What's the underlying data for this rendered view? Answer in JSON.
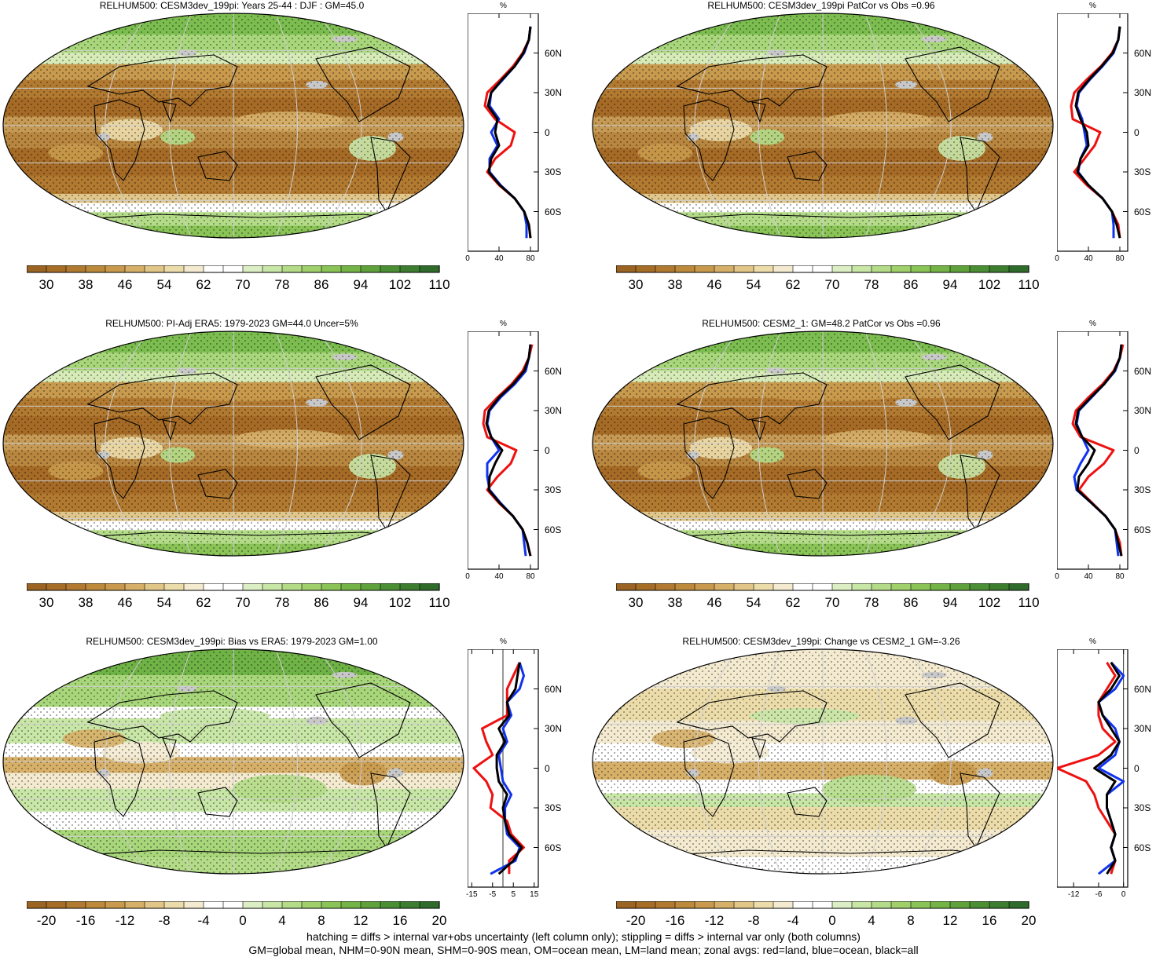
{
  "colors": {
    "brown_dark": "#a06a24",
    "tan": "#e6d39a",
    "green_light": "#b8dc8c",
    "green_dark": "#2f6b2f",
    "land_zonal": "#ee1111",
    "ocean_zonal": "#1133ee",
    "all_zonal": "#000000",
    "missing_gray": "#c8c8c8"
  },
  "panels": [
    {
      "title": "RELHUM500: CESM3dev_199pi: Years 25-44 : DJF : GM=45.0",
      "kind": "abs",
      "cbar_labels": [
        "30",
        "38",
        "46",
        "54",
        "62",
        "70",
        "78",
        "86",
        "94",
        "102",
        "110"
      ],
      "zonal_xticks": [
        "0",
        "40",
        "80"
      ],
      "zonal_lat_labels": [
        "60N",
        "30N",
        "0",
        "30S",
        "60S"
      ],
      "zonal_unit": "%"
    },
    {
      "title": "RELHUM500: CESM3dev_199pi PatCor vs Obs =0.96",
      "kind": "abs",
      "cbar_labels": [
        "30",
        "38",
        "46",
        "54",
        "62",
        "70",
        "78",
        "86",
        "94",
        "102",
        "110"
      ],
      "zonal_xticks": [
        "0",
        "40",
        "80"
      ],
      "zonal_lat_labels": [
        "60N",
        "30N",
        "0",
        "30S",
        "60S"
      ],
      "zonal_unit": "%"
    },
    {
      "title": "RELHUM500: PI-Adj ERA5: 1979-2023 GM=44.0 Uncer=5%",
      "kind": "abs",
      "cbar_labels": [
        "30",
        "38",
        "46",
        "54",
        "62",
        "70",
        "78",
        "86",
        "94",
        "102",
        "110"
      ],
      "zonal_xticks": [
        "0",
        "40",
        "80"
      ],
      "zonal_lat_labels": [
        "60N",
        "30N",
        "0",
        "30S",
        "60S"
      ],
      "zonal_unit": "%"
    },
    {
      "title": "RELHUM500: CESM2_1: GM=48.2 PatCor vs Obs =0.96",
      "kind": "abs",
      "cbar_labels": [
        "30",
        "38",
        "46",
        "54",
        "62",
        "70",
        "78",
        "86",
        "94",
        "102",
        "110"
      ],
      "zonal_xticks": [
        "0",
        "40",
        "80"
      ],
      "zonal_lat_labels": [
        "60N",
        "30N",
        "0",
        "30S",
        "60S"
      ],
      "zonal_unit": "%"
    },
    {
      "title": "RELHUM500: CESM3dev_199pi: Bias vs ERA5: 1979-2023 GM=1.00",
      "kind": "diff",
      "cbar_labels": [
        "-20",
        "-16",
        "-12",
        "-8",
        "-4",
        "0",
        "4",
        "8",
        "12",
        "16",
        "20"
      ],
      "zonal_xticks": [
        "-15",
        "-5",
        "5",
        "15"
      ],
      "zonal_lat_labels": [
        "60N",
        "30N",
        "0",
        "30S",
        "60S"
      ],
      "zonal_unit": "%"
    },
    {
      "title": "RELHUM500: CESM3dev_199pi: Change vs CESM2_1 GM=-3.26",
      "kind": "diff",
      "cbar_labels": [
        "-20",
        "-16",
        "-12",
        "-8",
        "-4",
        "0",
        "4",
        "8",
        "12",
        "16",
        "20"
      ],
      "zonal_xticks": [
        "-12",
        "-6",
        "0"
      ],
      "zonal_lat_labels": [
        "60N",
        "30N",
        "0",
        "30S",
        "60S"
      ],
      "zonal_unit": "%"
    }
  ],
  "footer": {
    "line1": "hatching = diffs > internal var+obs uncertainty (left column only); stippling = diffs > internal var only (both columns)",
    "line2": "GM=global mean, NHM=0-90N mean, SHM=0-90S mean, OM=ocean mean, LM=land mean; zonal avgs: red=land, blue=ocean, black=all"
  },
  "chart_data": [
    {
      "type": "heatmap",
      "title": "RELHUM500: CESM3dev_199pi: Years 25-44 : DJF : GM=45.0",
      "colorbar_ticks": [
        30,
        38,
        46,
        54,
        62,
        70,
        78,
        86,
        94,
        102,
        110
      ],
      "zonal_profile": {
        "ylabel": "%",
        "xlim": [
          0,
          90
        ],
        "xticks": [
          0,
          40,
          80
        ],
        "lat": [
          80,
          70,
          60,
          50,
          40,
          30,
          20,
          10,
          0,
          -10,
          -20,
          -30,
          -40,
          -50,
          -60,
          -70,
          -80
        ],
        "land": [
          80,
          78,
          70,
          58,
          42,
          25,
          22,
          35,
          60,
          55,
          35,
          25,
          40,
          60,
          72,
          78,
          80
        ],
        "ocean": [
          80,
          78,
          72,
          60,
          45,
          30,
          28,
          40,
          30,
          38,
          28,
          28,
          42,
          60,
          72,
          75,
          75
        ],
        "all": [
          80,
          78,
          71,
          60,
          44,
          30,
          26,
          38,
          35,
          40,
          30,
          27,
          41,
          60,
          72,
          78,
          80
        ]
      }
    },
    {
      "type": "heatmap",
      "title": "RELHUM500: CESM3dev_199pi PatCor vs Obs =0.96",
      "colorbar_ticks": [
        30,
        38,
        46,
        54,
        62,
        70,
        78,
        86,
        94,
        102,
        110
      ],
      "zonal_profile": {
        "ylabel": "%",
        "xlim": [
          0,
          90
        ],
        "xticks": [
          0,
          40,
          80
        ],
        "lat": [
          80,
          70,
          60,
          50,
          40,
          30,
          20,
          10,
          0,
          -10,
          -20,
          -30,
          -40,
          -50,
          -60,
          -70,
          -80
        ],
        "land": [
          80,
          78,
          70,
          56,
          38,
          22,
          18,
          20,
          55,
          48,
          35,
          22,
          38,
          58,
          70,
          78,
          80
        ],
        "ocean": [
          80,
          78,
          72,
          58,
          42,
          28,
          25,
          32,
          35,
          38,
          30,
          27,
          40,
          58,
          70,
          72,
          72
        ],
        "all": [
          80,
          78,
          71,
          57,
          41,
          27,
          24,
          30,
          38,
          40,
          30,
          26,
          40,
          58,
          70,
          76,
          80
        ]
      }
    },
    {
      "type": "heatmap",
      "title": "RELHUM500: PI-Adj ERA5: 1979-2023 GM=44.0 Uncer=5%",
      "colorbar_ticks": [
        30,
        38,
        46,
        54,
        62,
        70,
        78,
        86,
        94,
        102,
        110
      ],
      "zonal_profile": {
        "ylabel": "%",
        "xlim": [
          0,
          90
        ],
        "xticks": [
          0,
          40,
          80
        ],
        "lat": [
          80,
          70,
          60,
          50,
          40,
          30,
          20,
          10,
          0,
          -10,
          -20,
          -30,
          -40,
          -50,
          -60,
          -70,
          -80
        ],
        "land": [
          82,
          78,
          70,
          56,
          38,
          22,
          20,
          25,
          62,
          55,
          38,
          25,
          40,
          58,
          70,
          76,
          80
        ],
        "ocean": [
          80,
          78,
          74,
          60,
          42,
          28,
          25,
          30,
          40,
          25,
          25,
          28,
          42,
          58,
          70,
          72,
          74
        ],
        "all": [
          80,
          78,
          72,
          58,
          40,
          27,
          24,
          30,
          44,
          35,
          28,
          27,
          41,
          58,
          70,
          76,
          80
        ]
      }
    },
    {
      "type": "heatmap",
      "title": "RELHUM500: CESM2_1: GM=48.2 PatCor vs Obs =0.96",
      "colorbar_ticks": [
        30,
        38,
        46,
        54,
        62,
        70,
        78,
        86,
        94,
        102,
        110
      ],
      "zonal_profile": {
        "ylabel": "%",
        "xlim": [
          0,
          90
        ],
        "xticks": [
          0,
          40,
          80
        ],
        "lat": [
          80,
          70,
          60,
          50,
          40,
          30,
          20,
          10,
          0,
          -10,
          -20,
          -30,
          -40,
          -50,
          -60,
          -70,
          -80
        ],
        "land": [
          84,
          80,
          72,
          58,
          40,
          24,
          20,
          30,
          72,
          60,
          40,
          28,
          45,
          62,
          74,
          80,
          82
        ],
        "ocean": [
          82,
          80,
          74,
          60,
          44,
          28,
          25,
          32,
          40,
          30,
          22,
          25,
          44,
          62,
          74,
          76,
          78
        ],
        "all": [
          82,
          80,
          73,
          60,
          43,
          27,
          24,
          32,
          48,
          40,
          28,
          26,
          44,
          62,
          74,
          78,
          82
        ]
      }
    },
    {
      "type": "heatmap",
      "title": "RELHUM500: CESM3dev_199pi: Bias vs ERA5: 1979-2023 GM=1.00",
      "colorbar_ticks": [
        -20,
        -16,
        -12,
        -8,
        -4,
        0,
        4,
        8,
        12,
        16,
        20
      ],
      "zonal_profile": {
        "ylabel": "%",
        "xlim": [
          -17,
          17
        ],
        "xticks": [
          -15,
          -5,
          5,
          15
        ],
        "lat": [
          80,
          70,
          60,
          50,
          40,
          30,
          20,
          10,
          0,
          -10,
          -20,
          -30,
          -40,
          -50,
          -60,
          -70,
          -80
        ],
        "land": [
          8,
          5,
          2,
          2,
          2,
          -10,
          -8,
          -5,
          -14,
          -8,
          -5,
          -6,
          2,
          4,
          10,
          3,
          3
        ],
        "ocean": [
          8,
          10,
          8,
          2,
          4,
          0,
          2,
          -2,
          -1,
          0,
          4,
          1,
          1,
          2,
          8,
          6,
          -6
        ],
        "all": [
          8,
          7,
          6,
          2,
          3,
          -2,
          1,
          -3,
          -3,
          -2,
          2,
          0,
          1,
          3,
          9,
          5,
          -2
        ]
      }
    },
    {
      "type": "heatmap",
      "title": "RELHUM500: CESM3dev_199pi: Change vs CESM2_1 GM=-3.26",
      "colorbar_ticks": [
        -20,
        -16,
        -12,
        -8,
        -4,
        0,
        4,
        8,
        12,
        16,
        20
      ],
      "zonal_profile": {
        "ylabel": "%",
        "xlim": [
          -16,
          1
        ],
        "xticks": [
          -12,
          -6,
          0
        ],
        "lat": [
          80,
          70,
          60,
          50,
          40,
          30,
          20,
          10,
          0,
          -10,
          -20,
          -30,
          -40,
          -50,
          -60,
          -70,
          -80
        ],
        "land": [
          -4,
          -2,
          -4,
          -6,
          -6,
          -5,
          -2,
          -6,
          -16,
          -9,
          -7,
          -6,
          -4,
          -2,
          -3,
          -2,
          -3
        ],
        "ocean": [
          -3,
          0,
          -2,
          -6,
          -5,
          -2,
          -1,
          -2,
          -6,
          0,
          -4,
          -4,
          -3,
          -2,
          -3,
          -2,
          -6
        ],
        "all": [
          -3,
          -1,
          -3,
          -6,
          -5,
          -3,
          -1,
          -3,
          -7,
          -2,
          -4,
          -4,
          -3,
          -2,
          -3,
          -2,
          -4
        ]
      }
    }
  ]
}
